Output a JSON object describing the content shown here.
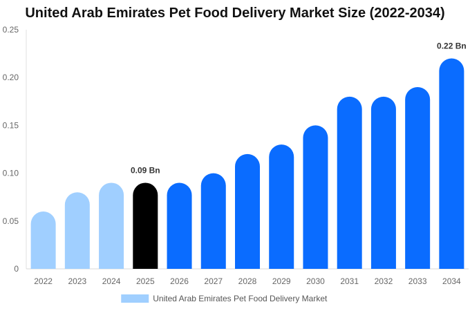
{
  "chart_data": {
    "type": "bar",
    "title": "United Arab Emirates Pet Food Delivery Market Size (2022-2034)",
    "xlabel": "",
    "ylabel": "",
    "categories": [
      "2022",
      "2023",
      "2024",
      "2025",
      "2026",
      "2027",
      "2028",
      "2029",
      "2030",
      "2031",
      "2032",
      "2033",
      "2034"
    ],
    "series": [
      {
        "name": "United Arab Emirates Pet Food Delivery Market",
        "values": [
          0.06,
          0.08,
          0.09,
          0.09,
          0.09,
          0.1,
          0.12,
          0.13,
          0.15,
          0.18,
          0.18,
          0.19,
          0.22
        ]
      }
    ],
    "ylim": [
      0,
      0.25
    ],
    "yticks": [
      "0",
      "0.05",
      "0.10",
      "0.15",
      "0.20",
      "0.25"
    ],
    "ytick_values": [
      0,
      0.05,
      0.1,
      0.15,
      0.2,
      0.25
    ],
    "grid": false,
    "legend_position": "bottom",
    "colors": {
      "historical": "#a0cfff",
      "current": "#000000",
      "forecast": "#0a6cff"
    },
    "bar_phase": [
      "historical",
      "historical",
      "historical",
      "current",
      "forecast",
      "forecast",
      "forecast",
      "forecast",
      "forecast",
      "forecast",
      "forecast",
      "forecast",
      "forecast"
    ],
    "annotations": [
      {
        "category": "2025",
        "text": "0.09 Bn"
      },
      {
        "category": "2034",
        "text": "0.22 Bn"
      }
    ]
  }
}
